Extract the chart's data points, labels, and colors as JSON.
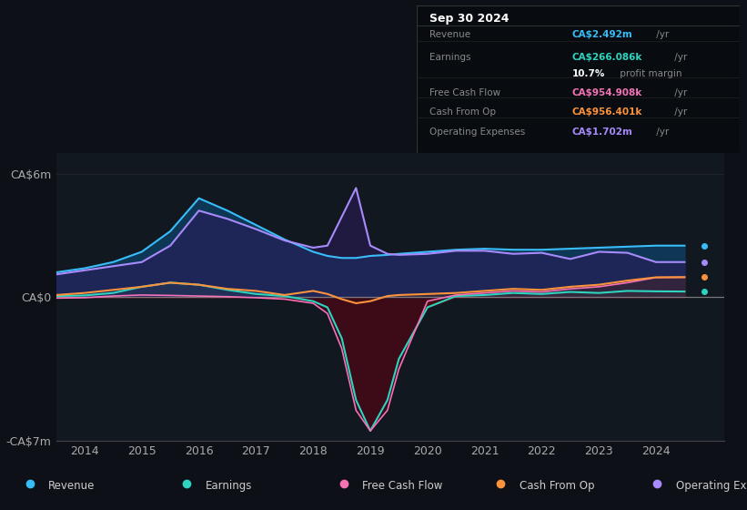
{
  "bg_color": "#0d1117",
  "plot_bg_color": "#111820",
  "ylim": [
    -7000000,
    7000000
  ],
  "xlim": [
    2013.5,
    2025.2
  ],
  "ytick_labels": [
    "CA$6m",
    "CA$0",
    "-CA$7m"
  ],
  "ytick_values": [
    6000000,
    0,
    -7000000
  ],
  "xtick_labels": [
    "2014",
    "2015",
    "2016",
    "2017",
    "2018",
    "2019",
    "2020",
    "2021",
    "2022",
    "2023",
    "2024"
  ],
  "xtick_values": [
    2014,
    2015,
    2016,
    2017,
    2018,
    2019,
    2020,
    2021,
    2022,
    2023,
    2024
  ],
  "legend_items": [
    {
      "label": "Revenue",
      "color": "#38bdf8"
    },
    {
      "label": "Earnings",
      "color": "#2dd4bf"
    },
    {
      "label": "Free Cash Flow",
      "color": "#f472b6"
    },
    {
      "label": "Cash From Op",
      "color": "#fb923c"
    },
    {
      "label": "Operating Expenses",
      "color": "#a78bfa"
    }
  ],
  "info_box": {
    "date": "Sep 30 2024",
    "rows": [
      {
        "label": "Revenue",
        "value": "CA$2.492m",
        "suffix": " /yr",
        "color": "#38bdf8"
      },
      {
        "label": "Earnings",
        "value": "CA$266.086k",
        "suffix": " /yr",
        "color": "#2dd4bf"
      },
      {
        "label": "",
        "value": "10.7%",
        "suffix": " profit margin",
        "color": "#ffffff"
      },
      {
        "label": "Free Cash Flow",
        "value": "CA$954.908k",
        "suffix": " /yr",
        "color": "#f472b6"
      },
      {
        "label": "Cash From Op",
        "value": "CA$956.401k",
        "suffix": " /yr",
        "color": "#fb923c"
      },
      {
        "label": "Operating Expenses",
        "value": "CA$1.702m",
        "suffix": " /yr",
        "color": "#a78bfa"
      }
    ]
  },
  "series": {
    "years": [
      2013.5,
      2014.0,
      2014.5,
      2015.0,
      2015.5,
      2016.0,
      2016.5,
      2017.0,
      2017.5,
      2018.0,
      2018.25,
      2018.5,
      2018.75,
      2019.0,
      2019.3,
      2019.5,
      2020.0,
      2020.5,
      2021.0,
      2021.5,
      2022.0,
      2022.5,
      2023.0,
      2023.5,
      2024.0,
      2024.5
    ],
    "revenue": [
      1200000,
      1400000,
      1700000,
      2200000,
      3200000,
      4800000,
      4200000,
      3500000,
      2800000,
      2200000,
      2000000,
      1900000,
      1900000,
      2000000,
      2050000,
      2100000,
      2200000,
      2300000,
      2350000,
      2300000,
      2300000,
      2350000,
      2400000,
      2450000,
      2500000,
      2500000
    ],
    "earnings": [
      50000,
      80000,
      200000,
      500000,
      700000,
      600000,
      350000,
      150000,
      50000,
      -200000,
      -500000,
      -2000000,
      -5000000,
      -6500000,
      -5000000,
      -3000000,
      -500000,
      50000,
      100000,
      200000,
      150000,
      250000,
      200000,
      300000,
      280000,
      270000
    ],
    "free_cash_flow": [
      -50000,
      -30000,
      50000,
      100000,
      80000,
      50000,
      20000,
      -30000,
      -100000,
      -300000,
      -800000,
      -2500000,
      -5500000,
      -6500000,
      -5500000,
      -3500000,
      -200000,
      100000,
      200000,
      300000,
      250000,
      400000,
      500000,
      700000,
      950000,
      960000
    ],
    "cash_from_op": [
      100000,
      200000,
      350000,
      500000,
      700000,
      600000,
      400000,
      300000,
      100000,
      300000,
      150000,
      -100000,
      -300000,
      -200000,
      50000,
      100000,
      150000,
      200000,
      300000,
      400000,
      350000,
      500000,
      600000,
      800000,
      960000,
      970000
    ],
    "op_expenses": [
      1100000,
      1300000,
      1500000,
      1700000,
      2500000,
      4200000,
      3800000,
      3300000,
      2750000,
      2400000,
      2500000,
      3900000,
      5300000,
      2500000,
      2100000,
      2050000,
      2100000,
      2250000,
      2250000,
      2100000,
      2150000,
      1850000,
      2200000,
      2150000,
      1700000,
      1700000
    ]
  }
}
